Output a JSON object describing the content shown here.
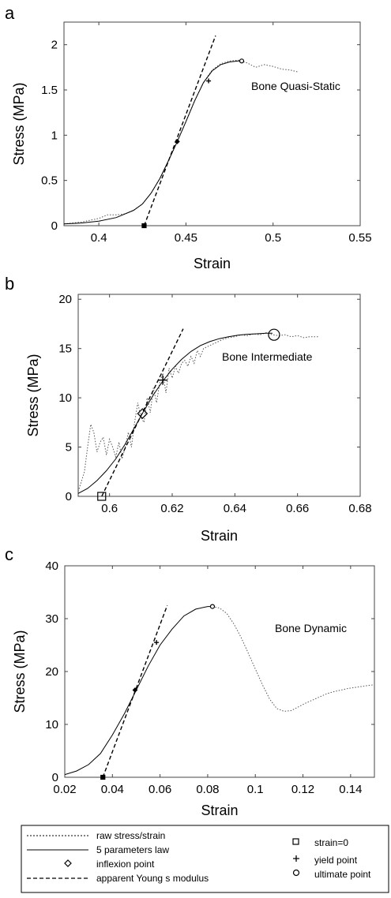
{
  "chart_data": [
    {
      "panel_label": "a",
      "type": "line",
      "xlabel": "Strain",
      "ylabel": "Stress (MPa)",
      "xlim": [
        0.38,
        0.55
      ],
      "ylim": [
        0,
        2.25
      ],
      "xticks": [
        0.4,
        0.45,
        0.5,
        0.55
      ],
      "xtick_labels": [
        "0.4",
        "0.45",
        "0.5",
        "0.55"
      ],
      "yticks": [
        0,
        0.5,
        1,
        1.5,
        2
      ],
      "ytick_labels": [
        "0",
        "0.5",
        "1",
        "1.5",
        "2"
      ],
      "annotation": "Bone Quasi-Static",
      "series": [
        {
          "style": "raw",
          "x": [
            0.38,
            0.39,
            0.4,
            0.405,
            0.41,
            0.415,
            0.42,
            0.425,
            0.43,
            0.435,
            0.44,
            0.445,
            0.45,
            0.455,
            0.46,
            0.465,
            0.47,
            0.475,
            0.48,
            0.485,
            0.49,
            0.495,
            0.5,
            0.505,
            0.51,
            0.514
          ],
          "y": [
            0.02,
            0.04,
            0.08,
            0.12,
            0.12,
            0.13,
            0.17,
            0.24,
            0.36,
            0.52,
            0.72,
            0.93,
            1.15,
            1.38,
            1.58,
            1.72,
            1.79,
            1.82,
            1.83,
            1.8,
            1.75,
            1.78,
            1.76,
            1.73,
            1.72,
            1.7
          ]
        },
        {
          "style": "fit",
          "x": [
            0.38,
            0.39,
            0.4,
            0.41,
            0.42,
            0.425,
            0.43,
            0.435,
            0.44,
            0.445,
            0.45,
            0.455,
            0.46,
            0.465,
            0.47,
            0.475,
            0.48,
            0.482
          ],
          "y": [
            0.02,
            0.03,
            0.05,
            0.09,
            0.17,
            0.24,
            0.36,
            0.52,
            0.72,
            0.93,
            1.15,
            1.38,
            1.58,
            1.71,
            1.78,
            1.81,
            1.82,
            1.82
          ]
        },
        {
          "style": "modulus",
          "x": [
            0.426,
            0.467
          ],
          "y": [
            0,
            2.1
          ]
        }
      ],
      "points": [
        {
          "kind": "strain0",
          "x": 0.426,
          "y": 0
        },
        {
          "kind": "inflexion",
          "x": 0.445,
          "y": 0.93
        },
        {
          "kind": "yield",
          "x": 0.463,
          "y": 1.6
        },
        {
          "kind": "ultimate",
          "x": 0.482,
          "y": 1.82
        }
      ]
    },
    {
      "panel_label": "b",
      "type": "line",
      "xlabel": "Strain",
      "ylabel": "Stress (MPa)",
      "xlim": [
        0.59,
        0.68
      ],
      "ylim": [
        0,
        20.5
      ],
      "xticks": [
        0.6,
        0.62,
        0.64,
        0.66,
        0.68
      ],
      "xtick_labels": [
        "0.6",
        "0.62",
        "0.64",
        "0.66",
        "0.68"
      ],
      "yticks": [
        0,
        5,
        10,
        15,
        20
      ],
      "ytick_labels": [
        "0",
        "5",
        "10",
        "15",
        "20"
      ],
      "annotation": "Bone Intermediate",
      "series": [
        {
          "style": "raw",
          "x": [
            0.59,
            0.591,
            0.592,
            0.593,
            0.594,
            0.595,
            0.596,
            0.597,
            0.598,
            0.599,
            0.6,
            0.601,
            0.602,
            0.603,
            0.604,
            0.605,
            0.606,
            0.607,
            0.608,
            0.609,
            0.61,
            0.611,
            0.612,
            0.613,
            0.614,
            0.615,
            0.616,
            0.617,
            0.618,
            0.619,
            0.62,
            0.621,
            0.622,
            0.623,
            0.624,
            0.625,
            0.626,
            0.627,
            0.628,
            0.629,
            0.63,
            0.632,
            0.634,
            0.636,
            0.638,
            0.64,
            0.642,
            0.644,
            0.646,
            0.648,
            0.65,
            0.652,
            0.654,
            0.656,
            0.658,
            0.66,
            0.662,
            0.664,
            0.667
          ],
          "y": [
            0.5,
            1.5,
            2.5,
            5.0,
            7.3,
            6.5,
            4.5,
            5.5,
            6.0,
            4.2,
            5.8,
            5.0,
            4.0,
            5.5,
            3.8,
            5.0,
            6.5,
            5.0,
            7.5,
            9.5,
            8.0,
            7.5,
            10.0,
            8.5,
            11.0,
            9.5,
            11.5,
            12.5,
            10.5,
            13.0,
            12.0,
            13.2,
            12.5,
            13.5,
            13.8,
            13.2,
            14.2,
            13.5,
            14.8,
            14.2,
            15.0,
            15.3,
            15.6,
            15.9,
            16.1,
            16.2,
            16.4,
            16.3,
            16.5,
            16.4,
            16.6,
            16.4,
            16.3,
            16.4,
            16.2,
            16.3,
            16.1,
            16.2,
            16.2
          ]
        },
        {
          "style": "fit",
          "x": [
            0.59,
            0.593,
            0.596,
            0.599,
            0.602,
            0.605,
            0.608,
            0.611,
            0.614,
            0.617,
            0.62,
            0.623,
            0.626,
            0.629,
            0.632,
            0.635,
            0.638,
            0.641,
            0.644,
            0.647,
            0.65,
            0.652
          ],
          "y": [
            0.3,
            0.8,
            1.6,
            2.6,
            3.8,
            5.3,
            7.0,
            8.7,
            10.3,
            11.7,
            12.9,
            13.9,
            14.7,
            15.3,
            15.7,
            16.0,
            16.2,
            16.35,
            16.45,
            16.5,
            16.55,
            16.55
          ]
        },
        {
          "style": "modulus",
          "x": [
            0.5975,
            0.6235
          ],
          "y": [
            0,
            17
          ]
        }
      ],
      "points": [
        {
          "kind": "strain0",
          "x": 0.5975,
          "y": 0
        },
        {
          "kind": "inflexion",
          "x": 0.6105,
          "y": 8.4
        },
        {
          "kind": "yield",
          "x": 0.617,
          "y": 11.8
        },
        {
          "kind": "ultimate",
          "x": 0.6525,
          "y": 16.4
        }
      ]
    },
    {
      "panel_label": "c",
      "type": "line",
      "xlabel": "Strain",
      "ylabel": "Stress (MPa)",
      "xlim": [
        0.02,
        0.15
      ],
      "ylim": [
        0,
        40
      ],
      "xticks": [
        0.02,
        0.04,
        0.06,
        0.08,
        0.1,
        0.12,
        0.14
      ],
      "xtick_labels": [
        "0.02",
        "0.04",
        "0.06",
        "0.08",
        "0.1",
        "0.12",
        "0.14"
      ],
      "yticks": [
        0,
        10,
        20,
        30,
        40
      ],
      "ytick_labels": [
        "0",
        "10",
        "20",
        "30",
        "40"
      ],
      "annotation": "Bone Dynamic",
      "series": [
        {
          "style": "raw",
          "x": [
            0.082,
            0.085,
            0.088,
            0.091,
            0.094,
            0.097,
            0.1,
            0.103,
            0.106,
            0.109,
            0.112,
            0.115,
            0.118,
            0.121,
            0.124,
            0.127,
            0.13,
            0.133,
            0.136,
            0.139,
            0.142,
            0.145,
            0.148,
            0.15
          ],
          "y": [
            32.3,
            32.0,
            31.0,
            29.0,
            26.5,
            23.5,
            20.5,
            17.5,
            14.8,
            13.0,
            12.5,
            12.6,
            13.3,
            14.0,
            14.6,
            15.2,
            15.8,
            16.2,
            16.5,
            16.8,
            17.0,
            17.2,
            17.4,
            17.5
          ]
        },
        {
          "style": "fit",
          "x": [
            0.02,
            0.025,
            0.03,
            0.035,
            0.04,
            0.045,
            0.05,
            0.055,
            0.06,
            0.065,
            0.07,
            0.075,
            0.08,
            0.082
          ],
          "y": [
            0.5,
            1.2,
            2.4,
            4.5,
            8.0,
            12.0,
            16.5,
            21.0,
            25.0,
            28.0,
            30.5,
            31.8,
            32.3,
            32.3
          ]
        },
        {
          "style": "modulus",
          "x": [
            0.036,
            0.063
          ],
          "y": [
            0,
            32.5
          ]
        }
      ],
      "points": [
        {
          "kind": "strain0",
          "x": 0.036,
          "y": 0
        },
        {
          "kind": "inflexion",
          "x": 0.0495,
          "y": 16.5
        },
        {
          "kind": "yield",
          "x": 0.0585,
          "y": 25.5
        },
        {
          "kind": "ultimate",
          "x": 0.082,
          "y": 32.3
        }
      ]
    }
  ],
  "legend": {
    "raw": "raw stress/strain",
    "fit": " 5 parameters law",
    "inflexion": "inflexion point",
    "modulus": "apparent Young s modulus",
    "strain0": "strain=0",
    "yield": "yield point",
    "ultimate": "ultimate point"
  }
}
